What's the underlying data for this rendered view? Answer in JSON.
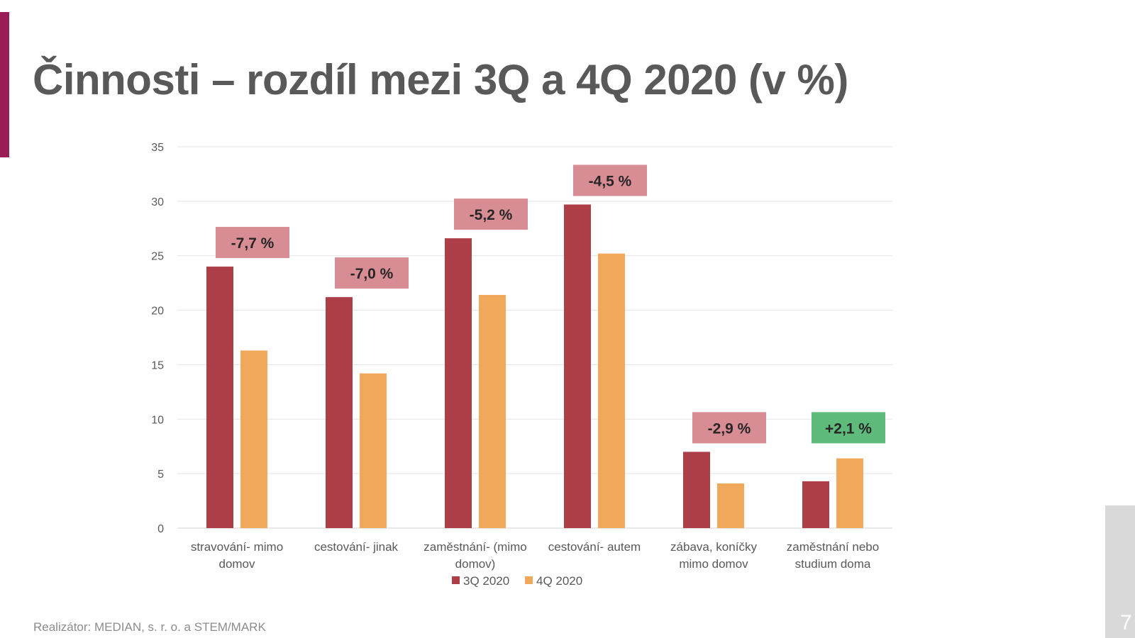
{
  "title": "Činnosti – rozdíl mezi 3Q a 4Q 2020 (v %)",
  "footer": "Realizátor: MEDIAN, s. r. o. a STEM/MARK",
  "page_number": "7",
  "colors": {
    "accent": "#9b1d55",
    "series_3q": "#ae3e47",
    "series_4q": "#f0a95b",
    "callout_negative": "#d88c93",
    "callout_positive": "#5fbb7c"
  },
  "chart_data": {
    "type": "bar",
    "title": "",
    "xlabel": "",
    "ylabel": "",
    "ylim": [
      0,
      35
    ],
    "yticks": [
      0,
      5,
      10,
      15,
      20,
      25,
      30,
      35
    ],
    "grid": true,
    "legend_position": "bottom",
    "categories": [
      [
        "stravování- mimo",
        "domov"
      ],
      [
        "cestování- jinak"
      ],
      [
        "zaměstnání- (mimo",
        "domov)"
      ],
      [
        "cestování- autem"
      ],
      [
        "zábava, koníčky",
        "mimo domov"
      ],
      [
        "zaměstnání nebo",
        "studium doma"
      ]
    ],
    "series": [
      {
        "name": "3Q 2020",
        "values": [
          24.0,
          21.2,
          26.6,
          29.7,
          7.0,
          4.3
        ]
      },
      {
        "name": "4Q 2020",
        "values": [
          16.3,
          14.2,
          21.4,
          25.2,
          4.1,
          6.4
        ]
      }
    ],
    "annotations": [
      "-7,7 %",
      "-7,0 %",
      "-5,2 %",
      "-4,5 %",
      "-2,9 %",
      "+2,1 %"
    ]
  }
}
